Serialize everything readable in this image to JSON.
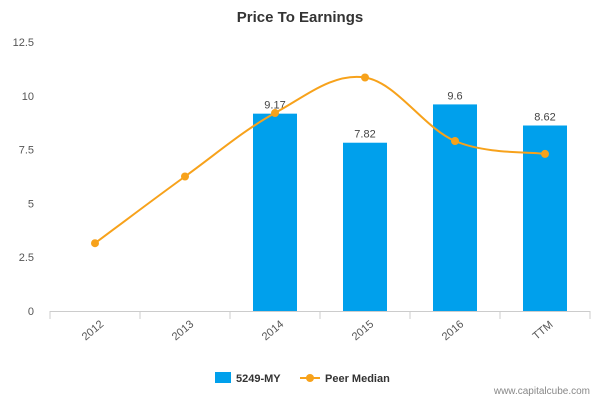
{
  "chart_data": {
    "type": "bar",
    "title": "Price To Earnings",
    "categories": [
      "2012",
      "2013",
      "2014",
      "2015",
      "2016",
      "TTM"
    ],
    "series": [
      {
        "name": "5249-MY",
        "type": "bar",
        "color": "#00a0ec",
        "values": [
          null,
          null,
          9.17,
          7.82,
          9.6,
          8.62
        ],
        "labels": [
          "",
          "",
          "9.17",
          "7.82",
          "9.6",
          "8.62"
        ]
      },
      {
        "name": "Peer Median",
        "type": "line",
        "color": "#f7a21b",
        "values": [
          3.15,
          6.25,
          9.2,
          10.85,
          7.9,
          7.3
        ]
      }
    ],
    "ylim": [
      0,
      12.5
    ],
    "yticks": [
      "0",
      "2.5",
      "5",
      "7.5",
      "10",
      "12.5"
    ],
    "grid": false,
    "legend_position": "bottom-center"
  },
  "watermark": "www.capitalcube.com"
}
